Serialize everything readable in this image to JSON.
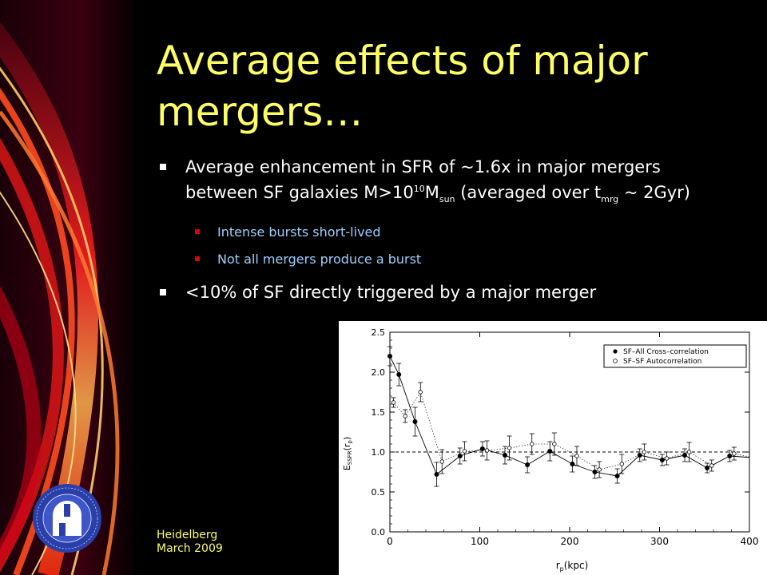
{
  "slide": {
    "title": "Average effects of major mergers…",
    "bullet1": {
      "part1": "Average enhancement in SFR of ~1.6x in major mergers between SF galaxies M>10",
      "sup1": "10",
      "part2": "M",
      "sub1": "sun",
      "part3": " (averaged over t",
      "sub2": "mrg",
      "part4": " ~ 2Gyr)"
    },
    "sub_bullets": [
      "Intense bursts short-lived",
      "Not all mergers produce a burst"
    ],
    "bullet2": "<10% of SF directly triggered by a major merger",
    "footer": {
      "line1": "Heidelberg",
      "line2": "March 2009"
    },
    "colors": {
      "title": "#ffff66",
      "sub_bullet_text": "#9ad0ff",
      "sub_bullet_marker": "#e00000"
    }
  },
  "chart_data": {
    "type": "line",
    "xlabel": "r_p(kpc)",
    "ylabel": "E_SSFR(r_p)",
    "xlim": [
      0,
      400
    ],
    "ylim": [
      0,
      2.5
    ],
    "xticks": [
      "0",
      "100",
      "200",
      "300",
      "400"
    ],
    "yticks": [
      "0.0",
      "0.5",
      "1.0",
      "1.5",
      "2.0",
      "2.5"
    ],
    "reference_line": 1.0,
    "legend": {
      "placement": "top-right",
      "entries": [
        "SF–All Cross–correlation",
        "SF–SF Autocorrelation"
      ]
    },
    "series": [
      {
        "name": "SF–All Cross–correlation",
        "x": [
          0,
          10,
          28,
          52,
          78,
          103,
          128,
          153,
          178,
          203,
          228,
          253,
          278,
          303,
          328,
          353,
          378,
          403
        ],
        "y": [
          2.2,
          1.97,
          1.38,
          0.72,
          0.95,
          1.04,
          0.96,
          0.84,
          1.01,
          0.85,
          0.75,
          0.7,
          0.96,
          0.9,
          0.96,
          0.8,
          0.95,
          0.93
        ],
        "err": [
          0.12,
          0.14,
          0.18,
          0.15,
          0.1,
          0.09,
          0.11,
          0.1,
          0.12,
          0.1,
          0.08,
          0.09,
          0.08,
          0.07,
          0.08,
          0.06,
          0.07,
          0.07
        ]
      },
      {
        "name": "SF–SF Autocorrelation",
        "x": [
          4,
          17,
          34,
          58,
          83,
          108,
          133,
          158,
          183,
          208,
          233,
          258,
          283,
          308,
          333,
          358,
          383,
          408
        ],
        "y": [
          1.62,
          1.45,
          1.75,
          0.88,
          1.01,
          1.02,
          1.05,
          1.1,
          1.1,
          0.95,
          0.78,
          0.85,
          1.0,
          0.92,
          1.0,
          0.83,
          0.98,
          0.92
        ],
        "err": [
          0.06,
          0.08,
          0.12,
          0.15,
          0.12,
          0.12,
          0.15,
          0.13,
          0.14,
          0.12,
          0.1,
          0.12,
          0.1,
          0.08,
          0.12,
          0.07,
          0.08,
          0.08
        ]
      }
    ]
  }
}
